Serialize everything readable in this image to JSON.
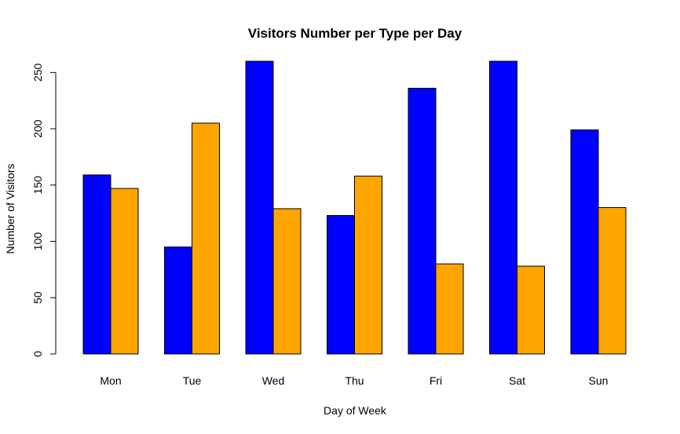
{
  "chart_data": {
    "type": "bar",
    "title": "Visitors Number per Type per Day",
    "xlabel": "Day of Week",
    "ylabel": "Number of Visitors",
    "categories": [
      "Mon",
      "Tue",
      "Wed",
      "Thu",
      "Fri",
      "Sat",
      "Sun"
    ],
    "series": [
      {
        "color": "#0000FF",
        "values": [
          159,
          95,
          260,
          123,
          236,
          260,
          199
        ]
      },
      {
        "color": "#FFA500",
        "values": [
          147,
          205,
          129,
          158,
          80,
          78,
          130
        ]
      }
    ],
    "yticks": [
      0,
      50,
      100,
      150,
      200,
      250
    ],
    "ylim": [
      0,
      260
    ],
    "grid": false,
    "legend": "none"
  }
}
